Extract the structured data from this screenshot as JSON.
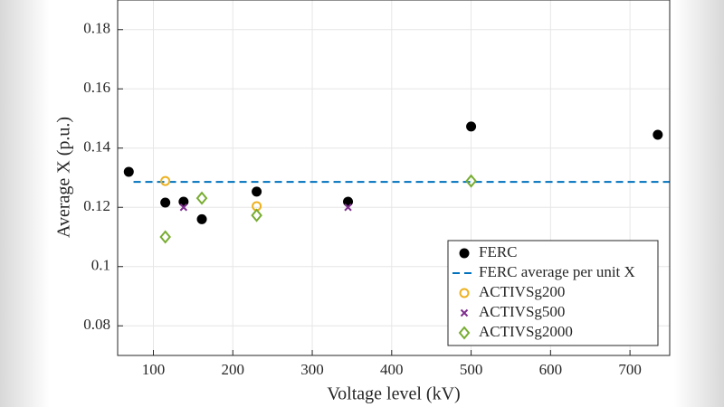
{
  "chart_data": {
    "type": "scatter",
    "xlabel": "Voltage level (kV)",
    "ylabel": "Average X (p.u.)",
    "xlim": [
      55,
      750
    ],
    "ylim": [
      0.07,
      0.19
    ],
    "xticks": [
      100,
      200,
      300,
      400,
      500,
      600,
      700
    ],
    "yticks": [
      0.08,
      0.1,
      0.12,
      0.14,
      0.16,
      0.18
    ],
    "grid": true,
    "legend": "lower-right",
    "series": [
      {
        "name": "FERC",
        "color": "#000000",
        "marker": "filled-circle",
        "x": [
          69,
          115,
          138,
          161,
          230,
          345,
          500,
          735
        ],
        "values": [
          0.132,
          0.1216,
          0.1219,
          0.116,
          0.1253,
          0.1219,
          0.1473,
          0.1445
        ]
      },
      {
        "name": "FERC average per unit X",
        "color": "#0072bd",
        "marker": "dashed-line",
        "x": [
          75,
          750
        ],
        "values": [
          0.1286,
          0.1286
        ]
      },
      {
        "name": "ACTIVSg200",
        "color": "#edb120",
        "marker": "open-circle",
        "x": [
          115,
          230
        ],
        "values": [
          0.1289,
          0.1204
        ]
      },
      {
        "name": "ACTIVSg500",
        "color": "#7e2f8e",
        "marker": "cross",
        "x": [
          138,
          345
        ],
        "values": [
          0.12,
          0.12
        ]
      },
      {
        "name": "ACTIVSg2000",
        "color": "#77ac30",
        "marker": "diamond",
        "x": [
          115,
          161,
          230,
          500
        ],
        "values": [
          0.11,
          0.1231,
          0.1173,
          0.1289
        ]
      }
    ]
  }
}
